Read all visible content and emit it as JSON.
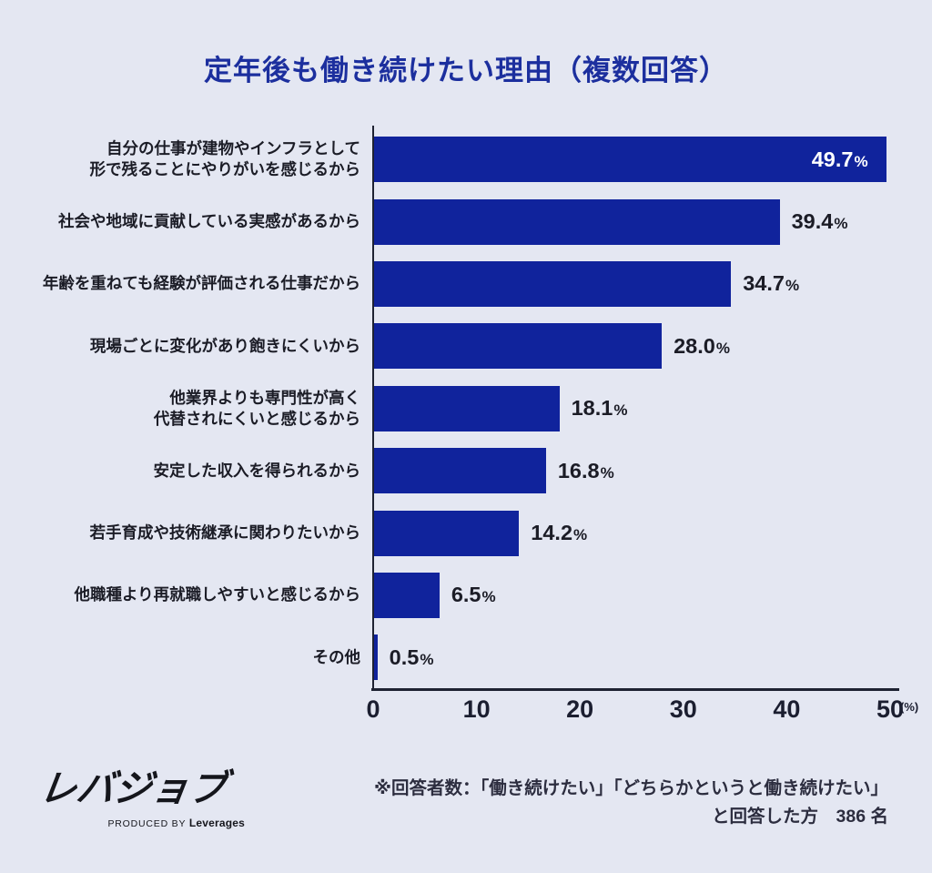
{
  "title": "定年後も働き続けたい理由（複数回答）",
  "chart_data": {
    "type": "bar",
    "orientation": "horizontal",
    "title": "定年後も働き続けたい理由（複数回答）",
    "categories": [
      "自分の仕事が建物やインフラとして\n形で残ることにやりがいを感じるから",
      "社会や地域に貢献している実感があるから",
      "年齢を重ねても経験が評価される仕事だから",
      "現場ごとに変化があり飽きにくいから",
      "他業界よりも専門性が高く\n代替されにくいと感じるから",
      "安定した収入を得られるから",
      "若手育成や技術継承に関わりたいから",
      "他職種より再就職しやすいと感じるから",
      "その他"
    ],
    "values": [
      49.7,
      39.4,
      34.7,
      28.0,
      18.1,
      16.8,
      14.2,
      6.5,
      0.5
    ],
    "value_labels": [
      "49.7%",
      "39.4%",
      "34.7%",
      "28.0%",
      "18.1%",
      "16.8%",
      "14.2%",
      "6.5%",
      "0.5%"
    ],
    "xlim": [
      0,
      50
    ],
    "x_ticks": [
      "0",
      "10",
      "20",
      "30",
      "40",
      "50"
    ],
    "x_unit_label": "(%)",
    "legend": "none",
    "grid": "off",
    "first_value_label_inside_bar": true
  },
  "footer": {
    "logo_text": "レバジョブ",
    "logo_produced_by": "PRODUCED BY ",
    "logo_company": "Leverages",
    "note_line1": "※回答者数：「働き続けたい」「どちらかというと働き続けたい」",
    "note_line2": "と回答した方　386 名"
  },
  "colors": {
    "background": "#e4e7f2",
    "bar": "#10239c",
    "title": "#1c2f9e",
    "text": "#1b1c26",
    "axis": "#1e2232",
    "value_inside": "#ffffff"
  }
}
